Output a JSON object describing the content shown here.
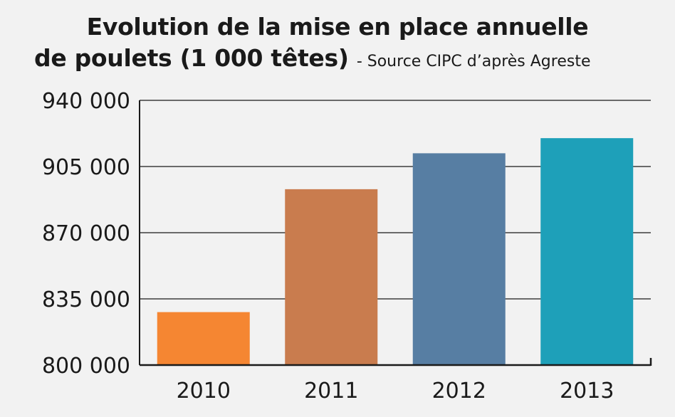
{
  "chart_data": {
    "type": "bar",
    "title_line1": "Evolution de la mise en place annuelle",
    "title_line2": "de poulets (1 000 têtes)",
    "subtitle": "- Source CIPC d’après Agreste",
    "categories": [
      "2010",
      "2011",
      "2012",
      "2013"
    ],
    "values": [
      828000,
      893000,
      912000,
      920000
    ],
    "colors": [
      "#f58632",
      "#c97c4e",
      "#577ea3",
      "#1ea0b9"
    ],
    "ylim": [
      800000,
      940000
    ],
    "yticks": [
      800000,
      835000,
      870000,
      905000,
      940000
    ],
    "ytick_labels": [
      "800 000",
      "835 000",
      "870 000",
      "905 000",
      "940 000"
    ],
    "grid": true,
    "xlabel": "",
    "ylabel": ""
  }
}
